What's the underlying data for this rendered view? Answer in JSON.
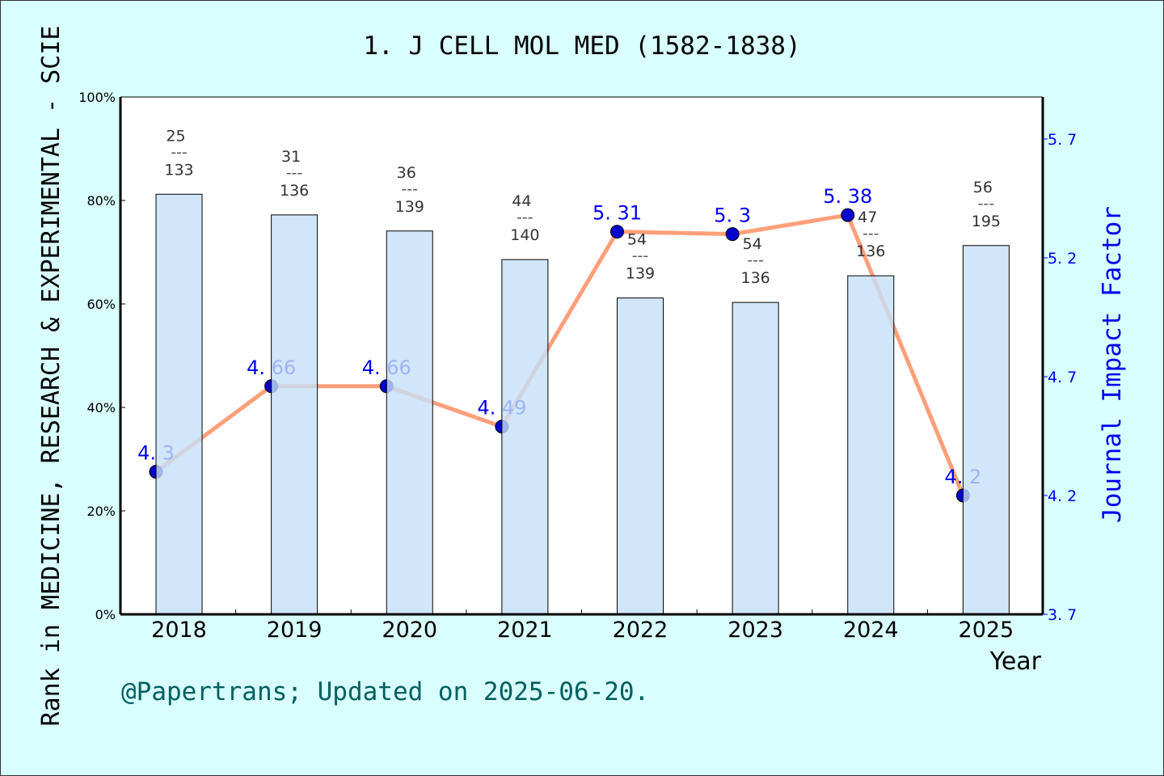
{
  "chart_data": {
    "type": "bar+line",
    "title": "1. J CELL MOL MED (1582-1838)",
    "xlabel": "Year",
    "ylabel": "Rank in MEDICINE, RESEARCH & EXPERIMENTAL - SCIE",
    "y2label": "Journal Impact Factor",
    "categories": [
      "2018",
      "2019",
      "2020",
      "2021",
      "2022",
      "2023",
      "2024",
      "2025"
    ],
    "ylim": [
      0,
      100
    ],
    "yticks": [
      "0%",
      "20%",
      "40%",
      "60%",
      "80%",
      "100%"
    ],
    "y2lim": [
      3.7,
      5.7
    ],
    "y2ticks": [
      "3.7",
      "4.2",
      "4.7",
      "5.2",
      "5.7"
    ],
    "rank": [
      25,
      31,
      36,
      44,
      54,
      54,
      47,
      56
    ],
    "total": [
      133,
      136,
      139,
      140,
      139,
      136,
      136,
      195
    ],
    "bar_percent": [
      81.2,
      77.2,
      74.1,
      68.6,
      61.2,
      60.3,
      65.4,
      71.3
    ],
    "impact_factor": [
      4.3,
      4.66,
      4.66,
      4.49,
      5.31,
      5.3,
      5.38,
      4.2
    ],
    "if_labels": [
      "4.3",
      "4.66",
      "4.66",
      "4.49",
      "5.31",
      "5.3",
      "5.38",
      "4.2"
    ],
    "colors": {
      "bar": "#c5e0f7",
      "line": "#ff9f7a",
      "point": "#0000cc",
      "if_text": "#0000ee",
      "background": "#d8fefe",
      "footer": "#006060"
    }
  },
  "footer": "@Papertrans; Updated on 2025-06-20."
}
